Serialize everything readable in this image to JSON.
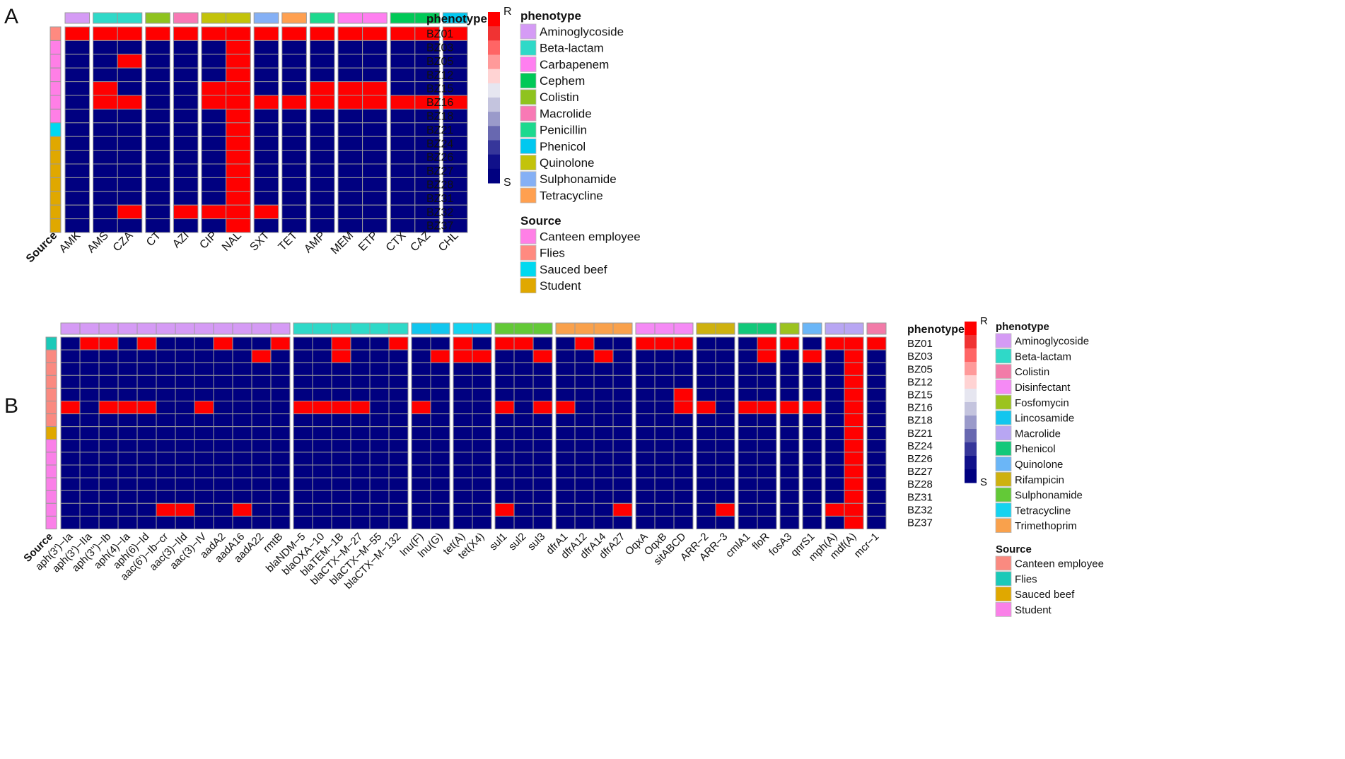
{
  "panels": {
    "a": {
      "letter": "A"
    },
    "b": {
      "letter": "B"
    }
  },
  "colors": {
    "resistant": "#FF0000",
    "susceptible": "#000080",
    "grid": "#9a9a9a",
    "scale": [
      "#FF0000",
      "#F03333",
      "#FF6565",
      "#FF9A9A",
      "#FFD3D3",
      "#E6E6F0",
      "#C4C4DE",
      "#9A9ACA",
      "#6868B0",
      "#36369A",
      "#10108A",
      "#000080"
    ],
    "phenotype": {
      "Aminoglycoside": "#D59BF5",
      "Beta-lactam": "#2FD9C8",
      "Carbapenem": "#FF7FF0",
      "Cephem": "#00C957",
      "Colistin": "#8FC31F",
      "Macrolide": "#F879B5",
      "Penicillin": "#1DD98E",
      "Phenicol": "#00C8F0",
      "Quinolone": "#C3C30A",
      "Sulphonamide": "#85B0F5",
      "Tetracycline": "#FFA050",
      "Disinfectant": "#F58AF5",
      "Fosfomycin": "#9CC31F",
      "Lincosamide": "#12C6EE",
      "MacrolideB": "#B8A6F3",
      "PhenicolB": "#12C87A",
      "QuinoloneB": "#6BB6F7",
      "Rifampicin": "#CEB10F",
      "SulphonamideB": "#63C937",
      "TetracyclineB": "#16D3F0",
      "Trimethoprim": "#F9A14C",
      "ColistinB": "#F27BA8"
    },
    "source": {
      "Canteen employee": "#FF7FE6",
      "Flies": "#FF8A80",
      "Sauced beef": "#00D9F0",
      "Student": "#E0A800"
    },
    "sourceB": {
      "Canteen employee": "#FA8A80",
      "Flies": "#1BC9B8",
      "Sauced beef": "#E0A800",
      "Student": "#FA80E8"
    }
  },
  "chart_data": [
    {
      "type": "heatmap",
      "panel": "A",
      "title": "",
      "scale_high_label": "R",
      "scale_low_label": "S",
      "row_annotation_label": "Source",
      "column_annotation_label": "phenotype",
      "rows": [
        "BZ01",
        "BZ03",
        "BZ05",
        "BZ12",
        "BZ15",
        "BZ16",
        "BZ18",
        "BZ21",
        "BZ24",
        "BZ26",
        "BZ27",
        "BZ28",
        "BZ31",
        "BZ32",
        "BZ37"
      ],
      "row_sources": [
        "Flies",
        "Canteen employee",
        "Canteen employee",
        "Canteen employee",
        "Canteen employee",
        "Canteen employee",
        "Canteen employee",
        "Sauced beef",
        "Student",
        "Student",
        "Student",
        "Student",
        "Student",
        "Student",
        "Student"
      ],
      "columns": [
        "AMK",
        "AMS",
        "CZA",
        "CT",
        "AZI",
        "CIP",
        "NAL",
        "SXT",
        "TET",
        "AMP",
        "MEM",
        "ETP",
        "CTX",
        "CAZ",
        "CHL"
      ],
      "column_phenotypes": [
        "Aminoglycoside",
        "Beta-lactam",
        "Beta-lactam",
        "Colistin",
        "Macrolide",
        "Quinolone",
        "Quinolone",
        "Sulphonamide",
        "Tetracycline",
        "Penicillin",
        "Carbapenem",
        "Carbapenem",
        "Cephem",
        "Cephem",
        "Phenicol"
      ],
      "values": [
        [
          1,
          1,
          1,
          1,
          1,
          1,
          1,
          1,
          1,
          1,
          1,
          1,
          1,
          1,
          1
        ],
        [
          0,
          0,
          0,
          0,
          0,
          0,
          1,
          0,
          0,
          0,
          0,
          0,
          0,
          0,
          0
        ],
        [
          0,
          0,
          1,
          0,
          0,
          0,
          1,
          0,
          0,
          0,
          0,
          0,
          0,
          0,
          0
        ],
        [
          0,
          0,
          0,
          0,
          0,
          0,
          1,
          0,
          0,
          0,
          0,
          0,
          0,
          0,
          0
        ],
        [
          0,
          1,
          0,
          0,
          0,
          1,
          1,
          0,
          0,
          1,
          1,
          1,
          0,
          0,
          0
        ],
        [
          0,
          1,
          1,
          0,
          0,
          1,
          1,
          1,
          1,
          1,
          1,
          1,
          1,
          1,
          1
        ],
        [
          0,
          0,
          0,
          0,
          0,
          0,
          1,
          0,
          0,
          0,
          0,
          0,
          0,
          0,
          0
        ],
        [
          0,
          0,
          0,
          0,
          0,
          0,
          1,
          0,
          0,
          0,
          0,
          0,
          0,
          0,
          0
        ],
        [
          0,
          0,
          0,
          0,
          0,
          0,
          1,
          0,
          0,
          0,
          0,
          0,
          0,
          0,
          0
        ],
        [
          0,
          0,
          0,
          0,
          0,
          0,
          1,
          0,
          0,
          0,
          0,
          0,
          0,
          0,
          0
        ],
        [
          0,
          0,
          0,
          0,
          0,
          0,
          1,
          0,
          0,
          0,
          0,
          0,
          0,
          0,
          0
        ],
        [
          0,
          0,
          0,
          0,
          0,
          0,
          1,
          0,
          0,
          0,
          0,
          0,
          0,
          0,
          0
        ],
        [
          0,
          0,
          0,
          0,
          0,
          0,
          1,
          0,
          0,
          0,
          0,
          0,
          0,
          0,
          0
        ],
        [
          0,
          0,
          1,
          0,
          1,
          1,
          1,
          1,
          0,
          0,
          0,
          0,
          0,
          0,
          0
        ],
        [
          0,
          0,
          0,
          0,
          0,
          0,
          1,
          0,
          0,
          0,
          0,
          0,
          0,
          0,
          0
        ]
      ],
      "legend_phenotype": [
        "Aminoglycoside",
        "Beta-lactam",
        "Carbapenem",
        "Cephem",
        "Colistin",
        "Macrolide",
        "Penicillin",
        "Phenicol",
        "Quinolone",
        "Sulphonamide",
        "Tetracycline"
      ],
      "legend_source": [
        "Canteen employee",
        "Flies",
        "Sauced beef",
        "Student"
      ]
    },
    {
      "type": "heatmap",
      "panel": "B",
      "title": "",
      "scale_high_label": "R",
      "scale_low_label": "S",
      "row_annotation_label": "Source",
      "column_annotation_label": "phenotype",
      "rows": [
        "BZ01",
        "BZ03",
        "BZ05",
        "BZ12",
        "BZ15",
        "BZ16",
        "BZ18",
        "BZ21",
        "BZ24",
        "BZ26",
        "BZ27",
        "BZ28",
        "BZ31",
        "BZ32",
        "BZ37"
      ],
      "row_sources": [
        "Flies",
        "Canteen employee",
        "Canteen employee",
        "Canteen employee",
        "Canteen employee",
        "Canteen employee",
        "Canteen employee",
        "Sauced beef",
        "Student",
        "Student",
        "Student",
        "Student",
        "Student",
        "Student",
        "Student"
      ],
      "columns": [
        "aph(3')−Ia",
        "aph(3')−IIa",
        "aph(3'')−Ib",
        "aph(4)−Ia",
        "aph(6)−Id",
        "aac(6')−Ib−cr",
        "aac(3)−IId",
        "aac(3)−IV",
        "aadA2",
        "aadA16",
        "aadA22",
        "rmtB",
        "blaNDM−5",
        "blaOXA−10",
        "blaTEM−1B",
        "blaCTX−M−27",
        "blaCTX−M−55",
        "blaCTX−M−132",
        "lnu(F)",
        "lnu(G)",
        "tet(A)",
        "tet(X4)",
        "sul1",
        "sul2",
        "sul3",
        "dfrA1",
        "dfrA12",
        "dfrA14",
        "dfrA27",
        "OqxA",
        "OqxB",
        "sitABCD",
        "ARR−2",
        "ARR−3",
        "cmlA1",
        "floR",
        "fosA3",
        "qnrS1",
        "mph(A)",
        "mdf(A)",
        "mcr−1"
      ],
      "column_phenotypes": [
        "Aminoglycoside",
        "Aminoglycoside",
        "Aminoglycoside",
        "Aminoglycoside",
        "Aminoglycoside",
        "Aminoglycoside",
        "Aminoglycoside",
        "Aminoglycoside",
        "Aminoglycoside",
        "Aminoglycoside",
        "Aminoglycoside",
        "Aminoglycoside",
        "Beta-lactam",
        "Beta-lactam",
        "Beta-lactam",
        "Beta-lactam",
        "Beta-lactam",
        "Beta-lactam",
        "Lincosamide",
        "Lincosamide",
        "Tetracycline",
        "Tetracycline",
        "Sulphonamide",
        "Sulphonamide",
        "Sulphonamide",
        "Trimethoprim",
        "Trimethoprim",
        "Trimethoprim",
        "Trimethoprim",
        "Disinfectant",
        "Disinfectant",
        "Disinfectant",
        "Rifampicin",
        "Rifampicin",
        "Phenicol",
        "Phenicol",
        "Fosfomycin",
        "Quinolone",
        "Macrolide",
        "Macrolide",
        "Colistin"
      ],
      "values": [
        [
          0,
          1,
          1,
          0,
          1,
          0,
          0,
          0,
          1,
          0,
          0,
          1,
          0,
          0,
          1,
          0,
          0,
          1,
          0,
          0,
          1,
          0,
          1,
          1,
          0,
          0,
          1,
          0,
          0,
          1,
          1,
          1,
          0,
          0,
          0,
          1,
          1,
          0,
          1,
          1,
          1
        ],
        [
          0,
          0,
          0,
          0,
          0,
          0,
          0,
          0,
          0,
          0,
          1,
          0,
          0,
          0,
          1,
          0,
          0,
          0,
          0,
          1,
          1,
          1,
          0,
          0,
          1,
          0,
          0,
          1,
          0,
          0,
          0,
          0,
          0,
          0,
          0,
          1,
          0,
          1,
          0,
          1,
          0
        ],
        [
          0,
          0,
          0,
          0,
          0,
          0,
          0,
          0,
          0,
          0,
          0,
          0,
          0,
          0,
          0,
          0,
          0,
          0,
          0,
          0,
          0,
          0,
          0,
          0,
          0,
          0,
          0,
          0,
          0,
          0,
          0,
          0,
          0,
          0,
          0,
          0,
          0,
          0,
          0,
          1,
          0
        ],
        [
          0,
          0,
          0,
          0,
          0,
          0,
          0,
          0,
          0,
          0,
          0,
          0,
          0,
          0,
          0,
          0,
          0,
          0,
          0,
          0,
          0,
          0,
          0,
          0,
          0,
          0,
          0,
          0,
          0,
          0,
          0,
          0,
          0,
          0,
          0,
          0,
          0,
          0,
          0,
          1,
          0
        ],
        [
          0,
          0,
          0,
          0,
          0,
          0,
          0,
          0,
          0,
          0,
          0,
          0,
          0,
          0,
          0,
          0,
          0,
          0,
          0,
          0,
          0,
          0,
          0,
          0,
          0,
          0,
          0,
          0,
          0,
          0,
          0,
          1,
          0,
          0,
          0,
          0,
          0,
          0,
          0,
          1,
          0
        ],
        [
          1,
          0,
          1,
          1,
          1,
          0,
          0,
          1,
          0,
          0,
          0,
          0,
          1,
          1,
          1,
          1,
          0,
          0,
          1,
          0,
          0,
          0,
          1,
          0,
          1,
          1,
          0,
          0,
          0,
          0,
          0,
          1,
          1,
          0,
          1,
          1,
          1,
          1,
          0,
          1,
          0
        ],
        [
          0,
          0,
          0,
          0,
          0,
          0,
          0,
          0,
          0,
          0,
          0,
          0,
          0,
          0,
          0,
          0,
          0,
          0,
          0,
          0,
          0,
          0,
          0,
          0,
          0,
          0,
          0,
          0,
          0,
          0,
          0,
          0,
          0,
          0,
          0,
          0,
          0,
          0,
          0,
          1,
          0
        ],
        [
          0,
          0,
          0,
          0,
          0,
          0,
          0,
          0,
          0,
          0,
          0,
          0,
          0,
          0,
          0,
          0,
          0,
          0,
          0,
          0,
          0,
          0,
          0,
          0,
          0,
          0,
          0,
          0,
          0,
          0,
          0,
          0,
          0,
          0,
          0,
          0,
          0,
          0,
          0,
          1,
          0
        ],
        [
          0,
          0,
          0,
          0,
          0,
          0,
          0,
          0,
          0,
          0,
          0,
          0,
          0,
          0,
          0,
          0,
          0,
          0,
          0,
          0,
          0,
          0,
          0,
          0,
          0,
          0,
          0,
          0,
          0,
          0,
          0,
          0,
          0,
          0,
          0,
          0,
          0,
          0,
          0,
          1,
          0
        ],
        [
          0,
          0,
          0,
          0,
          0,
          0,
          0,
          0,
          0,
          0,
          0,
          0,
          0,
          0,
          0,
          0,
          0,
          0,
          0,
          0,
          0,
          0,
          0,
          0,
          0,
          0,
          0,
          0,
          0,
          0,
          0,
          0,
          0,
          0,
          0,
          0,
          0,
          0,
          0,
          1,
          0
        ],
        [
          0,
          0,
          0,
          0,
          0,
          0,
          0,
          0,
          0,
          0,
          0,
          0,
          0,
          0,
          0,
          0,
          0,
          0,
          0,
          0,
          0,
          0,
          0,
          0,
          0,
          0,
          0,
          0,
          0,
          0,
          0,
          0,
          0,
          0,
          0,
          0,
          0,
          0,
          0,
          1,
          0
        ],
        [
          0,
          0,
          0,
          0,
          0,
          0,
          0,
          0,
          0,
          0,
          0,
          0,
          0,
          0,
          0,
          0,
          0,
          0,
          0,
          0,
          0,
          0,
          0,
          0,
          0,
          0,
          0,
          0,
          0,
          0,
          0,
          0,
          0,
          0,
          0,
          0,
          0,
          0,
          0,
          1,
          0
        ],
        [
          0,
          0,
          0,
          0,
          0,
          0,
          0,
          0,
          0,
          0,
          0,
          0,
          0,
          0,
          0,
          0,
          0,
          0,
          0,
          0,
          0,
          0,
          0,
          0,
          0,
          0,
          0,
          0,
          0,
          0,
          0,
          0,
          0,
          0,
          0,
          0,
          0,
          0,
          0,
          1,
          0
        ],
        [
          0,
          0,
          0,
          0,
          0,
          1,
          1,
          0,
          0,
          1,
          0,
          0,
          0,
          0,
          0,
          0,
          0,
          0,
          0,
          0,
          0,
          0,
          1,
          0,
          0,
          0,
          0,
          0,
          1,
          0,
          0,
          0,
          0,
          1,
          0,
          0,
          0,
          0,
          1,
          1,
          0
        ],
        [
          0,
          0,
          0,
          0,
          0,
          0,
          0,
          0,
          0,
          0,
          0,
          0,
          0,
          0,
          0,
          0,
          0,
          0,
          0,
          0,
          0,
          0,
          0,
          0,
          0,
          0,
          0,
          0,
          0,
          0,
          0,
          0,
          0,
          0,
          0,
          0,
          0,
          0,
          0,
          1,
          0
        ]
      ],
      "legend_phenotype": [
        "Aminoglycoside",
        "Beta-lactam",
        "Colistin",
        "Disinfectant",
        "Fosfomycin",
        "Lincosamide",
        "Macrolide",
        "Phenicol",
        "Quinolone",
        "Rifampicin",
        "Sulphonamide",
        "Tetracycline",
        "Trimethoprim"
      ],
      "legend_source": [
        "Canteen employee",
        "Flies",
        "Sauced beef",
        "Student"
      ]
    }
  ]
}
